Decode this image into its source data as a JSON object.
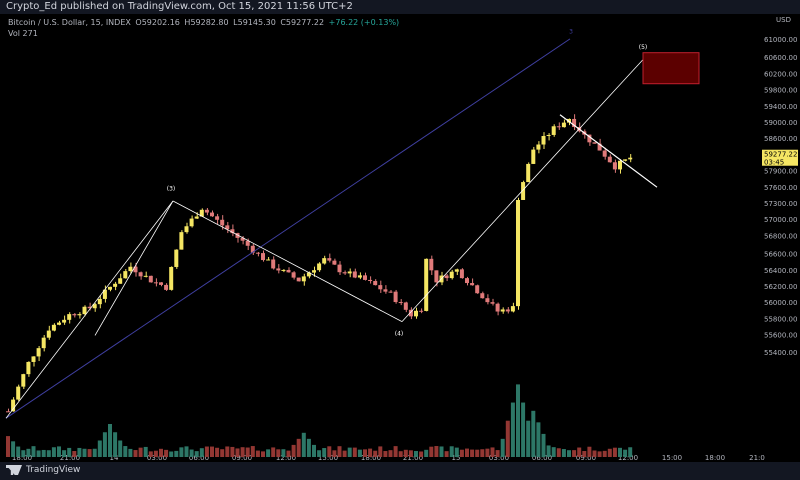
{
  "publisher": "Crypto_Ed published on TradingView.com, Oct 15, 2021 11:56 UTC+2",
  "header": {
    "symbol": "Bitcoin / U.S. Dollar, 15, INDEX",
    "open": "O59202.16",
    "high": "H59282.80",
    "low": "L59145.30",
    "close": "C59277.22",
    "change": "+76.22 (+0.13%)",
    "volume_label": "Vol",
    "volume_value": "271"
  },
  "price_axis": {
    "currency": "USD",
    "last_price": "59277.22",
    "countdown": "03:45"
  },
  "footer": {
    "brand": "TradingView"
  },
  "annotations": [
    "(3)",
    "(4)",
    "(5)",
    "3"
  ],
  "colors": {
    "up": "#f5e663",
    "down": "#e07a7a",
    "vol_up": "#2f7d6d",
    "vol_down": "#9b3a36",
    "channel": "#3f3fa0",
    "trendline": "#ffffff",
    "target_box": "#5c0000",
    "target_border": "#c0202e",
    "last_price_tag": "#f5e663"
  },
  "chart_data": {
    "type": "candlestick",
    "x_tick_labels": [
      "18:00",
      "21:00",
      "14",
      "03:00",
      "06:00",
      "09:00",
      "12:00",
      "15:00",
      "18:00",
      "21:00",
      "15",
      "03:00",
      "06:00",
      "09:00",
      "12:00",
      "15:00",
      "18:00",
      "21:0"
    ],
    "y_tick_labels": [
      "61000.00",
      "60600.00",
      "60200.00",
      "59800.00",
      "59400.00",
      "59000.00",
      "58600.00",
      "58200.00",
      "57900.00",
      "57600.00",
      "57300.00",
      "57000.00",
      "56800.00",
      "56600.00",
      "56400.00",
      "56200.00",
      "56000.00",
      "55800.00",
      "55600.00",
      "55400.00"
    ],
    "ylim": [
      55300,
      61100
    ],
    "price_path": [
      [
        0,
        55600
      ],
      [
        4,
        56300
      ],
      [
        8,
        56800
      ],
      [
        12,
        57000
      ],
      [
        16,
        57100
      ],
      [
        20,
        57400
      ],
      [
        24,
        57700
      ],
      [
        28,
        57500
      ],
      [
        31,
        57400
      ],
      [
        34,
        58200
      ],
      [
        38,
        58550
      ],
      [
        42,
        58300
      ],
      [
        47,
        58000
      ],
      [
        52,
        57700
      ],
      [
        57,
        57500
      ],
      [
        62,
        57800
      ],
      [
        65,
        57650
      ],
      [
        70,
        57500
      ],
      [
        75,
        57300
      ],
      [
        79,
        57000
      ],
      [
        81,
        57100
      ],
      [
        82,
        57800
      ],
      [
        84,
        57500
      ],
      [
        88,
        57650
      ],
      [
        92,
        57350
      ],
      [
        96,
        57050
      ],
      [
        99,
        57100
      ],
      [
        100,
        58700
      ],
      [
        103,
        59400
      ],
      [
        107,
        59700
      ],
      [
        110,
        59850
      ],
      [
        113,
        59600
      ],
      [
        116,
        59400
      ],
      [
        119,
        59150
      ],
      [
        122,
        59277
      ]
    ],
    "volume_range": [
      0,
      380
    ],
    "volume_peaks": [
      [
        0,
        95
      ],
      [
        20,
        150
      ],
      [
        58,
        110
      ],
      [
        100,
        330
      ],
      [
        103,
        210
      ]
    ]
  }
}
